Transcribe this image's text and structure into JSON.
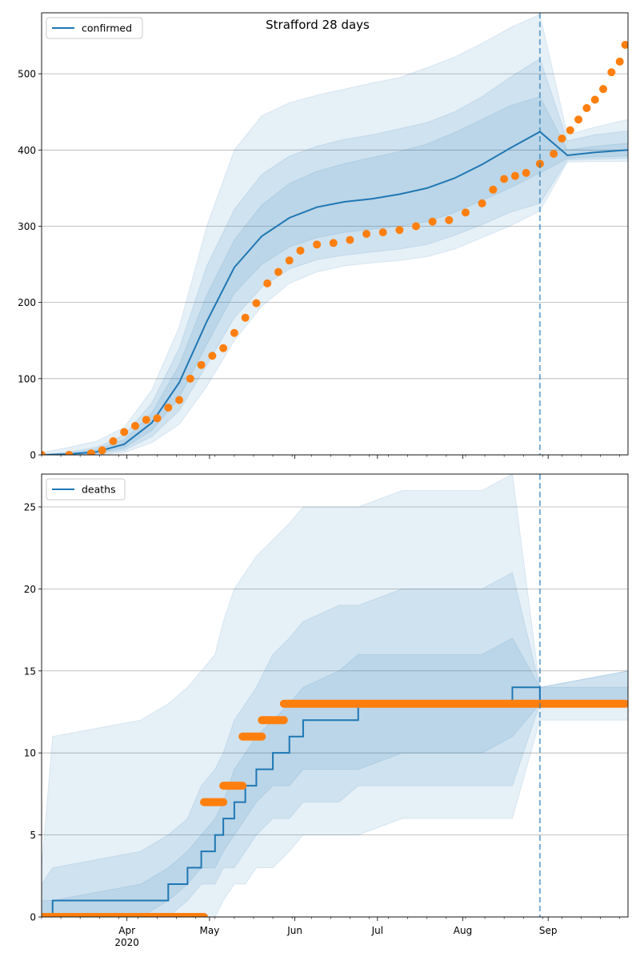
{
  "figure": {
    "title": "Strafford 28 days"
  },
  "chart_data": [
    {
      "type": "line",
      "legend": {
        "label": "confirmed",
        "placement": "top-left"
      },
      "grid": "horizontal",
      "x_range": [
        "2020-03-01",
        "2020-09-30"
      ],
      "ylim": [
        0,
        580
      ],
      "yticks": [
        0,
        100,
        200,
        300,
        400,
        500
      ],
      "x_major_ticks": [
        {
          "date": "2020-04-01",
          "label": "Apr",
          "sublabel": "2020"
        },
        {
          "date": "2020-05-01",
          "label": "May"
        },
        {
          "date": "2020-06-01",
          "label": "Jun"
        },
        {
          "date": "2020-07-01",
          "label": "Jul"
        },
        {
          "date": "2020-08-01",
          "label": "Aug"
        },
        {
          "date": "2020-09-01",
          "label": "Sep"
        }
      ],
      "forecast_start": "2020-08-29",
      "fit": {
        "color": "#1f77b4",
        "x": [
          "2020-03-01",
          "2020-03-11",
          "2020-03-21",
          "2020-03-31",
          "2020-04-10",
          "2020-04-20",
          "2020-04-30",
          "2020-05-10",
          "2020-05-20",
          "2020-05-30",
          "2020-06-09",
          "2020-06-19",
          "2020-06-29",
          "2020-07-09",
          "2020-07-19",
          "2020-07-29",
          "2020-08-08",
          "2020-08-18",
          "2020-08-29",
          "2020-09-08",
          "2020-09-18",
          "2020-09-30"
        ],
        "median": [
          0,
          1,
          4,
          14,
          42,
          95,
          175,
          246,
          287,
          311,
          325,
          332,
          336,
          342,
          350,
          363,
          381,
          402,
          424,
          393,
          397,
          400
        ],
        "band_50": [
          [
            0,
            0
          ],
          [
            0,
            2
          ],
          [
            2,
            7
          ],
          [
            9,
            20
          ],
          [
            32,
            55
          ],
          [
            75,
            118
          ],
          [
            145,
            210
          ],
          [
            212,
            282
          ],
          [
            250,
            328
          ],
          [
            273,
            356
          ],
          [
            285,
            372
          ],
          [
            292,
            382
          ],
          [
            296,
            390
          ],
          [
            300,
            398
          ],
          [
            306,
            408
          ],
          [
            318,
            423
          ],
          [
            334,
            440
          ],
          [
            350,
            458
          ],
          [
            370,
            470
          ],
          [
            389,
            400
          ],
          [
            391,
            405
          ],
          [
            392,
            409
          ]
        ],
        "band_80": [
          [
            0,
            0
          ],
          [
            0,
            4
          ],
          [
            1,
            10
          ],
          [
            6,
            26
          ],
          [
            24,
            68
          ],
          [
            58,
            140
          ],
          [
            118,
            248
          ],
          [
            180,
            322
          ],
          [
            220,
            368
          ],
          [
            244,
            392
          ],
          [
            256,
            405
          ],
          [
            262,
            414
          ],
          [
            266,
            420
          ],
          [
            270,
            428
          ],
          [
            276,
            436
          ],
          [
            288,
            450
          ],
          [
            302,
            470
          ],
          [
            318,
            495
          ],
          [
            330,
            520
          ],
          [
            387,
            412
          ],
          [
            388,
            420
          ],
          [
            389,
            425
          ]
        ],
        "band_95": [
          [
            0,
            3
          ],
          [
            0,
            10
          ],
          [
            0,
            18
          ],
          [
            3,
            36
          ],
          [
            16,
            85
          ],
          [
            40,
            168
          ],
          [
            90,
            300
          ],
          [
            150,
            400
          ],
          [
            195,
            445
          ],
          [
            225,
            462
          ],
          [
            240,
            472
          ],
          [
            248,
            480
          ],
          [
            252,
            488
          ],
          [
            255,
            495
          ],
          [
            260,
            508
          ],
          [
            270,
            522
          ],
          [
            285,
            540
          ],
          [
            300,
            560
          ],
          [
            320,
            578
          ],
          [
            384,
            420
          ],
          [
            385,
            430
          ],
          [
            385,
            440
          ]
        ]
      },
      "observed": {
        "color": "#ff7f0e",
        "x": [
          "2020-03-01",
          "2020-03-11",
          "2020-03-19",
          "2020-03-23",
          "2020-03-27",
          "2020-03-31",
          "2020-04-04",
          "2020-04-08",
          "2020-04-12",
          "2020-04-16",
          "2020-04-20",
          "2020-04-24",
          "2020-04-28",
          "2020-05-02",
          "2020-05-06",
          "2020-05-10",
          "2020-05-14",
          "2020-05-18",
          "2020-05-22",
          "2020-05-26",
          "2020-05-30",
          "2020-06-03",
          "2020-06-09",
          "2020-06-15",
          "2020-06-21",
          "2020-06-27",
          "2020-07-03",
          "2020-07-09",
          "2020-07-15",
          "2020-07-21",
          "2020-07-27",
          "2020-08-02",
          "2020-08-08",
          "2020-08-12",
          "2020-08-16",
          "2020-08-20",
          "2020-08-24",
          "2020-08-29",
          "2020-09-03",
          "2020-09-06",
          "2020-09-09",
          "2020-09-12",
          "2020-09-15",
          "2020-09-18",
          "2020-09-21",
          "2020-09-24",
          "2020-09-27",
          "2020-09-29"
        ],
        "values": [
          0,
          0,
          2,
          6,
          18,
          30,
          38,
          46,
          48,
          62,
          72,
          100,
          118,
          130,
          140,
          160,
          180,
          199,
          225,
          240,
          255,
          268,
          276,
          278,
          282,
          290,
          292,
          295,
          300,
          306,
          308,
          318,
          330,
          348,
          362,
          366,
          370,
          382,
          395,
          415,
          426,
          440,
          455,
          466,
          480,
          502,
          516,
          538
        ]
      }
    },
    {
      "type": "line",
      "legend": {
        "label": "deaths",
        "placement": "top-left"
      },
      "grid": "horizontal",
      "x_range": [
        "2020-03-01",
        "2020-09-30"
      ],
      "ylim": [
        0,
        27
      ],
      "yticks": [
        0,
        5,
        10,
        15,
        20,
        25
      ],
      "x_major_ticks": [
        {
          "date": "2020-04-01",
          "label": "Apr",
          "sublabel": "2020"
        },
        {
          "date": "2020-05-01",
          "label": "May"
        },
        {
          "date": "2020-06-01",
          "label": "Jun"
        },
        {
          "date": "2020-07-01",
          "label": "Jul"
        },
        {
          "date": "2020-08-01",
          "label": "Aug"
        },
        {
          "date": "2020-09-01",
          "label": "Sep"
        }
      ],
      "forecast_start": "2020-08-29",
      "fit": {
        "color": "#1f77b4",
        "x": [
          "2020-03-01",
          "2020-03-05",
          "2020-04-06",
          "2020-04-16",
          "2020-04-23",
          "2020-04-28",
          "2020-05-03",
          "2020-05-06",
          "2020-05-10",
          "2020-05-14",
          "2020-05-18",
          "2020-05-24",
          "2020-05-30",
          "2020-06-04",
          "2020-06-17",
          "2020-06-24",
          "2020-07-10",
          "2020-08-08",
          "2020-08-19",
          "2020-08-29",
          "2020-09-30"
        ],
        "median": [
          0,
          1,
          1,
          2,
          3,
          4,
          5,
          6,
          7,
          8,
          9,
          10,
          11,
          12,
          12,
          13,
          13,
          13,
          14,
          13,
          13
        ],
        "band_50": [
          [
            0,
            1
          ],
          [
            0,
            1
          ],
          [
            0,
            2
          ],
          [
            1,
            3
          ],
          [
            2,
            4
          ],
          [
            3,
            5
          ],
          [
            3,
            6
          ],
          [
            4,
            7
          ],
          [
            5,
            9
          ],
          [
            6,
            10
          ],
          [
            7,
            11
          ],
          [
            8,
            12
          ],
          [
            8,
            13
          ],
          [
            9,
            14
          ],
          [
            9,
            15
          ],
          [
            9,
            16
          ],
          [
            10,
            16
          ],
          [
            10,
            16
          ],
          [
            11,
            17
          ],
          [
            13,
            14
          ],
          [
            13,
            14
          ]
        ],
        "band_80": [
          [
            0,
            2
          ],
          [
            0,
            3
          ],
          [
            0,
            4
          ],
          [
            0,
            5
          ],
          [
            1,
            6
          ],
          [
            2,
            8
          ],
          [
            2,
            9
          ],
          [
            3,
            10
          ],
          [
            3,
            12
          ],
          [
            4,
            13
          ],
          [
            5,
            14
          ],
          [
            6,
            16
          ],
          [
            6,
            17
          ],
          [
            7,
            18
          ],
          [
            7,
            19
          ],
          [
            8,
            19
          ],
          [
            8,
            20
          ],
          [
            8,
            20
          ],
          [
            8,
            21
          ],
          [
            13,
            14
          ],
          [
            13,
            15
          ]
        ],
        "band_95": [
          [
            0,
            3
          ],
          [
            0,
            11
          ],
          [
            0,
            12
          ],
          [
            0,
            13
          ],
          [
            0,
            14
          ],
          [
            0,
            15
          ],
          [
            0,
            16
          ],
          [
            1,
            18
          ],
          [
            2,
            20
          ],
          [
            2,
            21
          ],
          [
            3,
            22
          ],
          [
            3,
            23
          ],
          [
            4,
            24
          ],
          [
            5,
            25
          ],
          [
            5,
            25
          ],
          [
            5,
            25
          ],
          [
            6,
            26
          ],
          [
            6,
            26
          ],
          [
            6,
            27
          ],
          [
            12,
            14
          ],
          [
            12,
            15
          ]
        ]
      },
      "observed": {
        "color": "#ff7f0e",
        "segments": [
          {
            "from": "2020-03-01",
            "to": "2020-04-29",
            "value": 0
          },
          {
            "from": "2020-04-29",
            "to": "2020-05-06",
            "value": 7
          },
          {
            "from": "2020-05-06",
            "to": "2020-05-13",
            "value": 8
          },
          {
            "from": "2020-05-13",
            "to": "2020-05-20",
            "value": 11
          },
          {
            "from": "2020-05-20",
            "to": "2020-05-28",
            "value": 12
          },
          {
            "from": "2020-05-28",
            "to": "2020-09-29",
            "value": 13
          }
        ]
      }
    }
  ]
}
